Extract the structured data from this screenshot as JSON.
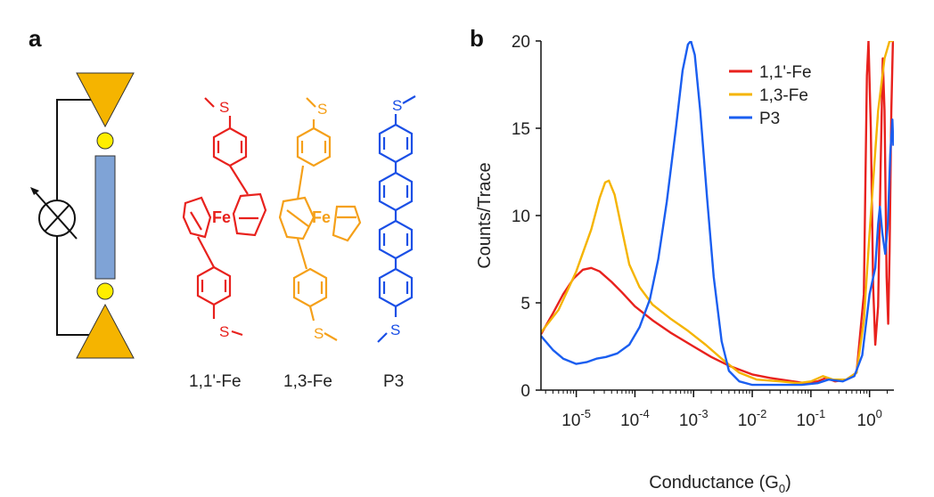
{
  "figure": {
    "panel_a": {
      "label": "a",
      "molecules": [
        {
          "label": "1,1'-Fe",
          "color": "#e8211d",
          "metal": "Fe",
          "sulfur": "S"
        },
        {
          "label": "1,3-Fe",
          "color": "#f5a019",
          "metal": "Fe",
          "sulfur": "S"
        },
        {
          "label": "P3",
          "color": "#1a4fe6",
          "sulfur": "S"
        }
      ],
      "colors": {
        "electrode": "#f5b400",
        "anchor": "#ffee00",
        "molecule_bar": "#7fa3d6"
      },
      "icons": [
        "electrode-icon",
        "anchor-atom-icon",
        "molecule-bar-icon",
        "ammeter-icon"
      ]
    },
    "panel_b": {
      "label": "b",
      "chart_data": {
        "type": "line",
        "xlabel": "Conductance (G",
        "xlabel_sub": "0",
        "xlabel_suffix": ")",
        "ylabel": "Counts/Trace",
        "xscale": "log",
        "xlim": [
          2.5e-06,
          2.6
        ],
        "ylim": [
          0,
          20
        ],
        "yticks": [
          0,
          5,
          10,
          15,
          20
        ],
        "xticks": [
          {
            "value": 1e-05,
            "base": "10",
            "exp": "-5"
          },
          {
            "value": 0.0001,
            "base": "10",
            "exp": "-4"
          },
          {
            "value": 0.001,
            "base": "10",
            "exp": "-3"
          },
          {
            "value": 0.01,
            "base": "10",
            "exp": "-2"
          },
          {
            "value": 0.1,
            "base": "10",
            "exp": "-1"
          },
          {
            "value": 1,
            "base": "10",
            "exp": "0"
          }
        ],
        "legend_position": "top-right",
        "grid": false,
        "series": [
          {
            "name": "1,1'-Fe",
            "color": "#e8211d",
            "points": [
              [
                2.5e-06,
                3.2
              ],
              [
                4e-06,
                4.4
              ],
              [
                6e-06,
                5.5
              ],
              [
                9e-06,
                6.4
              ],
              [
                1.3e-05,
                6.9
              ],
              [
                1.8e-05,
                7.0
              ],
              [
                2.5e-05,
                6.8
              ],
              [
                4e-05,
                6.2
              ],
              [
                6e-05,
                5.6
              ],
              [
                0.0001,
                4.8
              ],
              [
                0.0002,
                4.0
              ],
              [
                0.0004,
                3.3
              ],
              [
                0.001,
                2.5
              ],
              [
                0.002,
                1.9
              ],
              [
                0.004,
                1.4
              ],
              [
                0.01,
                0.9
              ],
              [
                0.02,
                0.7
              ],
              [
                0.05,
                0.5
              ],
              [
                0.08,
                0.4
              ],
              [
                0.13,
                0.5
              ],
              [
                0.18,
                0.7
              ],
              [
                0.26,
                0.5
              ],
              [
                0.4,
                0.6
              ],
              [
                0.6,
                1.0
              ],
              [
                0.8,
                5.5
              ],
              [
                0.9,
                18.0
              ],
              [
                0.96,
                20.0
              ],
              [
                1.05,
                15.0
              ],
              [
                1.15,
                6.0
              ],
              [
                1.25,
                2.6
              ],
              [
                1.4,
                4.8
              ],
              [
                1.55,
                13.0
              ],
              [
                1.68,
                19.0
              ],
              [
                1.8,
                16.0
              ],
              [
                1.95,
                6.5
              ],
              [
                2.08,
                3.8
              ],
              [
                2.2,
                8.0
              ],
              [
                2.35,
                16.0
              ],
              [
                2.5,
                20.0
              ]
            ]
          },
          {
            "name": "1,3-Fe",
            "color": "#f5b400",
            "points": [
              [
                2.5e-06,
                3.3
              ],
              [
                5e-06,
                4.6
              ],
              [
                1e-05,
                6.8
              ],
              [
                1.8e-05,
                9.2
              ],
              [
                2.5e-05,
                11.0
              ],
              [
                3.1e-05,
                11.9
              ],
              [
                3.6e-05,
                12.0
              ],
              [
                4.5e-05,
                11.2
              ],
              [
                6e-05,
                9.2
              ],
              [
                8e-05,
                7.2
              ],
              [
                0.00012,
                5.9
              ],
              [
                0.0002,
                4.9
              ],
              [
                0.0004,
                4.1
              ],
              [
                0.0008,
                3.4
              ],
              [
                0.0016,
                2.6
              ],
              [
                0.003,
                1.8
              ],
              [
                0.006,
                1.0
              ],
              [
                0.012,
                0.6
              ],
              [
                0.03,
                0.5
              ],
              [
                0.06,
                0.4
              ],
              [
                0.1,
                0.5
              ],
              [
                0.16,
                0.8
              ],
              [
                0.24,
                0.6
              ],
              [
                0.4,
                0.6
              ],
              [
                0.6,
                1.0
              ],
              [
                0.8,
                4.0
              ],
              [
                1.0,
                9.0
              ],
              [
                1.4,
                16.0
              ],
              [
                1.8,
                19.0
              ],
              [
                2.2,
                20.0
              ],
              [
                2.55,
                20.0
              ]
            ]
          },
          {
            "name": "P3",
            "color": "#1a5ef0",
            "points": [
              [
                2.5e-06,
                3.1
              ],
              [
                4e-06,
                2.3
              ],
              [
                6e-06,
                1.8
              ],
              [
                1e-05,
                1.5
              ],
              [
                1.5e-05,
                1.6
              ],
              [
                2.2e-05,
                1.8
              ],
              [
                3.2e-05,
                1.9
              ],
              [
                5e-05,
                2.1
              ],
              [
                8e-05,
                2.6
              ],
              [
                0.00012,
                3.6
              ],
              [
                0.00018,
                5.2
              ],
              [
                0.00025,
                7.5
              ],
              [
                0.00035,
                10.8
              ],
              [
                0.0005,
                15.0
              ],
              [
                0.00065,
                18.3
              ],
              [
                0.0008,
                19.8
              ],
              [
                0.0009,
                20.0
              ],
              [
                0.00105,
                19.2
              ],
              [
                0.0013,
                16.0
              ],
              [
                0.0017,
                11.0
              ],
              [
                0.0022,
                6.5
              ],
              [
                0.003,
                2.8
              ],
              [
                0.004,
                1.1
              ],
              [
                0.006,
                0.5
              ],
              [
                0.01,
                0.3
              ],
              [
                0.03,
                0.3
              ],
              [
                0.07,
                0.3
              ],
              [
                0.13,
                0.4
              ],
              [
                0.2,
                0.6
              ],
              [
                0.35,
                0.5
              ],
              [
                0.55,
                0.8
              ],
              [
                0.75,
                2.0
              ],
              [
                1.0,
                5.5
              ],
              [
                1.25,
                7.0
              ],
              [
                1.4,
                9.5
              ],
              [
                1.5,
                10.5
              ],
              [
                1.65,
                9.0
              ],
              [
                1.85,
                7.8
              ],
              [
                2.05,
                9.5
              ],
              [
                2.25,
                13.5
              ],
              [
                2.45,
                15.5
              ],
              [
                2.55,
                14.0
              ]
            ]
          }
        ]
      }
    }
  }
}
